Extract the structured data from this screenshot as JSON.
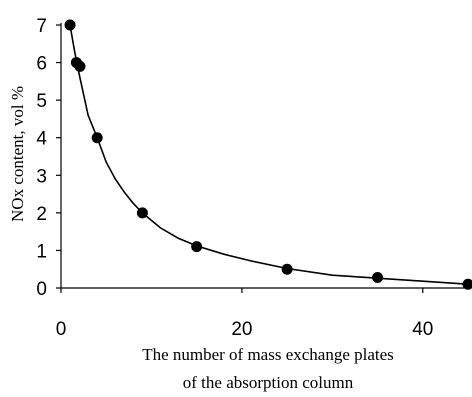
{
  "chart_data": {
    "type": "scatter",
    "title": "",
    "xlabel_lines": [
      "The number of mass exchange plates",
      "of the absorption column"
    ],
    "ylabel": "NOx content, vol %",
    "xlim": [
      0,
      45
    ],
    "ylim": [
      0,
      7
    ],
    "x_ticks": [
      "0",
      "20",
      "40"
    ],
    "y_ticks": [
      "0",
      "1",
      "2",
      "3",
      "4",
      "5",
      "6",
      "7"
    ],
    "grid": false,
    "legend": "none",
    "marker_color": "#000000",
    "points": [
      {
        "x": 1,
        "y": 7.0
      },
      {
        "x": 1.7,
        "y": 6.0
      },
      {
        "x": 2.1,
        "y": 5.9
      },
      {
        "x": 4,
        "y": 4.0
      },
      {
        "x": 9,
        "y": 2.0
      },
      {
        "x": 15,
        "y": 1.1
      },
      {
        "x": 25,
        "y": 0.5
      },
      {
        "x": 35,
        "y": 0.28
      },
      {
        "x": 45,
        "y": 0.1
      }
    ],
    "fit_curve": [
      [
        1,
        7.0
      ],
      [
        1.5,
        6.3
      ],
      [
        2,
        5.7
      ],
      [
        3,
        4.6
      ],
      [
        4,
        4.0
      ],
      [
        5,
        3.35
      ],
      [
        6,
        2.9
      ],
      [
        7,
        2.55
      ],
      [
        8,
        2.25
      ],
      [
        9,
        2.0
      ],
      [
        11,
        1.6
      ],
      [
        13,
        1.32
      ],
      [
        15,
        1.12
      ],
      [
        18,
        0.9
      ],
      [
        21,
        0.72
      ],
      [
        25,
        0.52
      ],
      [
        30,
        0.34
      ],
      [
        35,
        0.26
      ],
      [
        40,
        0.18
      ],
      [
        45,
        0.1
      ]
    ]
  }
}
